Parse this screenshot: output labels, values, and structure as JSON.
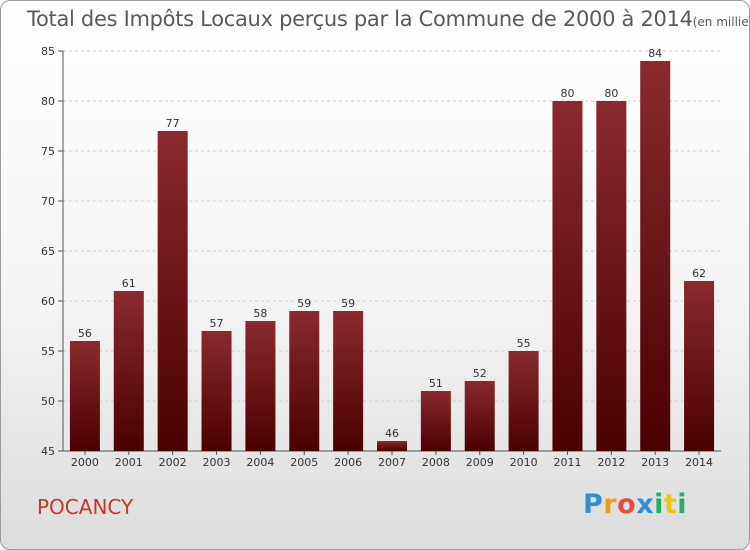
{
  "title_main": "Total des Impôts Locaux perçus par la Commune de 2000 à 2014",
  "title_unit": "(en milliers d'€)",
  "commune": "POCANCY",
  "logo_letters": [
    "P",
    "r",
    "o",
    "x",
    "i",
    "t",
    "i"
  ],
  "colors": {
    "bar_top": "#8a2a2e",
    "bar_bottom": "#4a0000",
    "commune": "#c0392b"
  },
  "chart_data": {
    "type": "bar",
    "title": "Total des Impôts Locaux perçus par la Commune de 2000 à 2014",
    "ylabel": "en milliers d'€",
    "categories": [
      "2000",
      "2001",
      "2002",
      "2003",
      "2004",
      "2005",
      "2006",
      "2007",
      "2008",
      "2009",
      "2010",
      "2011",
      "2012",
      "2013",
      "2014"
    ],
    "values": [
      56,
      61,
      77,
      57,
      58,
      59,
      59,
      46,
      51,
      52,
      55,
      80,
      80,
      84,
      62
    ],
    "ylim": [
      45,
      85
    ],
    "yticks": [
      45,
      50,
      55,
      60,
      65,
      70,
      75,
      80,
      85
    ],
    "grid": true
  }
}
